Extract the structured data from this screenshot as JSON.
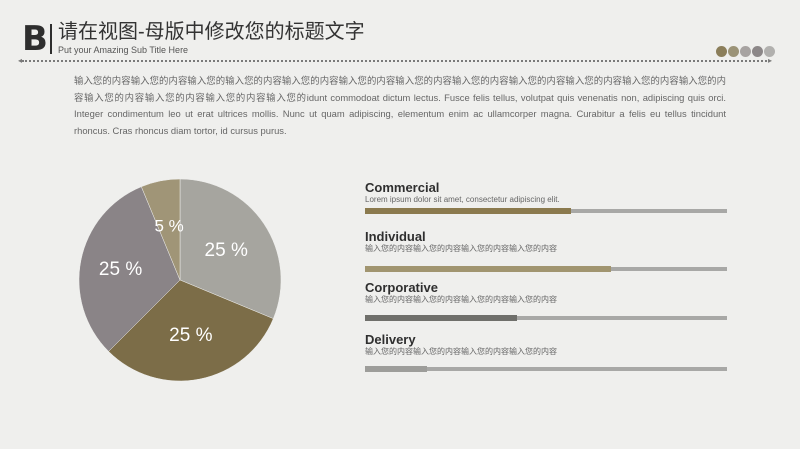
{
  "header": {
    "logo_letter": "B",
    "title": "请在视图-母版中修改您的标题文字",
    "subtitle": "Put your Amazing Sub Title Here",
    "dot_colors": [
      "#8b7e5a",
      "#9b9377",
      "#a7a3a1",
      "#8c8788",
      "#b1b0ae"
    ]
  },
  "intro_text": "输入您的内容输入您的内容输入您的输入您的内容输入您的内容输入您的内容输入您的内容输入您的内容输入您的内容输入您的内容输入您的内容输入您的内容输入您的内容输入您的内容输入您的内容输入您的idunt commodoat dictum lectus. Fusce felis tellus, volutpat quis venenatis non, adipiscing quis orci. Integer condimentum leo ut erat ultrices mollis. Nunc ut quam adipiscing, elementum enim ac ullamcorper magna. Curabitur a felis eu tellus tincidunt rhoncus. Cras rhoncus diam tortor, id cursus purus.",
  "chart_data": {
    "type": "pie",
    "slices": [
      {
        "label": "25 %",
        "value": 25,
        "color": "#a6a59f"
      },
      {
        "label": "25 %",
        "value": 25,
        "color": "#7c6d48"
      },
      {
        "label": "25 %",
        "value": 25,
        "color": "#8a8487"
      },
      {
        "label": "5 %",
        "value": 5,
        "color": "#a09577"
      }
    ]
  },
  "items": [
    {
      "title": "Commercial",
      "desc": "Lorem ipsum dolor sit amet, consectetur adipiscing elit.",
      "progress": 0.57,
      "color": "#8b7a4e"
    },
    {
      "title": "Individual",
      "desc": "输入您的内容输入您的内容输入您的内容输入您的内容",
      "progress": 0.68,
      "color": "#a19570"
    },
    {
      "title": "Corporative",
      "desc": "输入您的内容输入您的内容输入您的内容输入您的内容",
      "progress": 0.42,
      "color": "#6f6f6b"
    },
    {
      "title": "Delivery",
      "desc": "输入您的内容输入您的内容输入您的内容输入您的内容",
      "progress": 0.17,
      "color": "#9d9d9a"
    }
  ]
}
